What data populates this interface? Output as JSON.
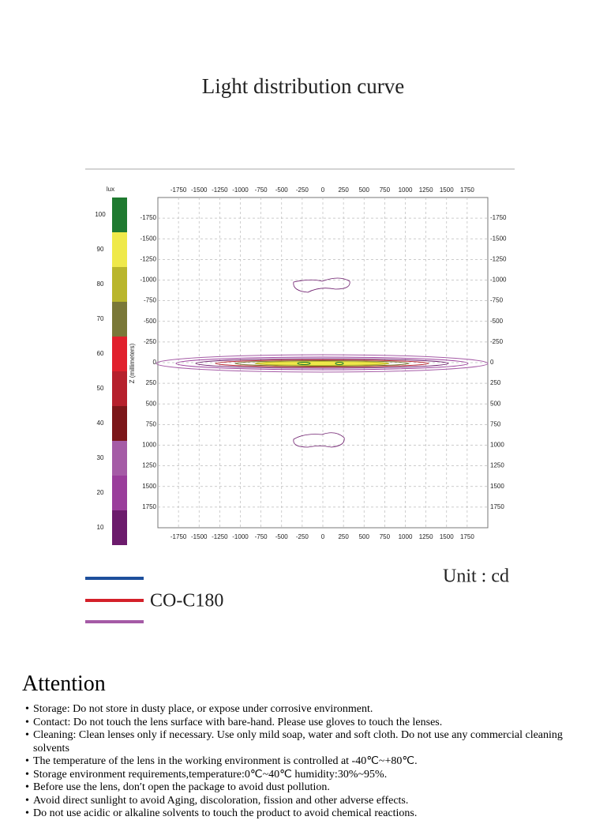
{
  "title": "Light distribution curve",
  "figure": {
    "colorbar": {
      "label": "lux",
      "ticks": [
        100,
        90,
        80,
        70,
        60,
        50,
        40,
        30,
        20,
        10
      ],
      "colors": [
        "#1f7a30",
        "#efe94a",
        "#b9b62c",
        "#7a7838",
        "#e1202c",
        "#b6202c",
        "#7c1619",
        "#a55ba6",
        "#9a3d9b",
        "#6c1b6c"
      ]
    },
    "plot": {
      "xlim": [
        -2000,
        2000
      ],
      "ylim": [
        -2000,
        2000
      ],
      "xticks": [
        -1750,
        -1500,
        -1250,
        -1000,
        -750,
        -500,
        -250,
        0,
        250,
        500,
        750,
        1000,
        1250,
        1500,
        1750
      ],
      "yticks": [
        -1750,
        -1500,
        -1250,
        -1000,
        -750,
        -500,
        -250,
        0,
        250,
        500,
        750,
        1000,
        1250,
        1500,
        1750
      ],
      "ylabel": "Z (millimeters)",
      "grid": true
    },
    "legend": {
      "colors": [
        "#1d4f9c",
        "#d4202a",
        "#a55ba6"
      ],
      "label": "CO-C180"
    },
    "unit": "Unit : cd"
  },
  "attention": {
    "title": "Attention",
    "items": [
      "Storage: Do not store in dusty place, or expose under corrosive environment.",
      "Contact: Do not touch the lens surface with bare-hand. Please use gloves to touch the lenses.",
      "Cleaning: Clean lenses only if necessary. Use only mild soap, water and soft cloth. Do not use any commercial cleaning solvents",
      "The temperature of the lens in the working environment is controlled at -40℃~+80℃.",
      "Storage environment requirements,temperature:0℃~40℃ humidity:30%~95%.",
      "Before use the lens, don′t open the package to avoid dust pollution.",
      "Avoid direct sunlight to avoid Aging, discoloration, fission and other adverse effects.",
      "Do not use acidic or alkaline solvents to touch the product to avoid chemical reactions."
    ]
  }
}
